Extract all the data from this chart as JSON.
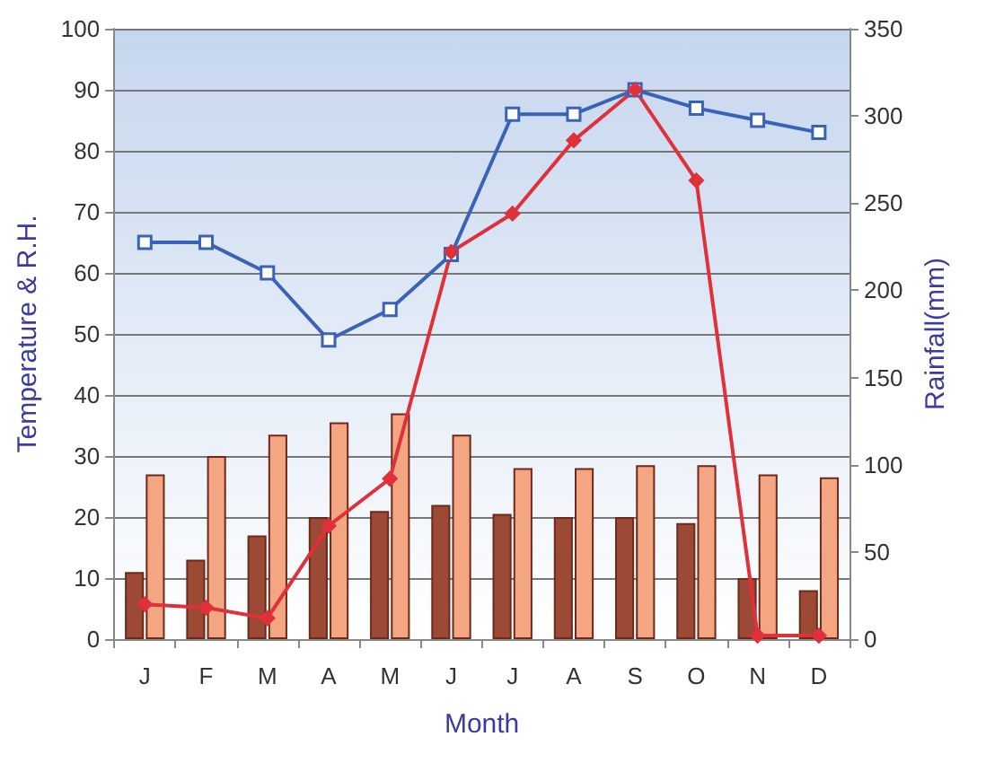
{
  "chart_data": {
    "type": "bar",
    "xlabel": "Month",
    "ylabel": "Temperature & R.H.",
    "y2label": "Rainfall(mm)",
    "categories": [
      "J",
      "F",
      "M",
      "A",
      "M",
      "J",
      "J",
      "A",
      "S",
      "O",
      "N",
      "D"
    ],
    "series": [
      {
        "color": "#9c4a35",
        "values": [
          11,
          13,
          17,
          20,
          21,
          22,
          20.5,
          20,
          20,
          19,
          10,
          8
        ]
      },
      {
        "color": "#f4a582",
        "values": [
          27,
          30,
          33.5,
          35.5,
          37,
          33.5,
          28,
          28,
          28.5,
          28.5,
          27,
          26.5
        ]
      },
      {
        "type": "line",
        "color": "#3a63b8",
        "marker": "square",
        "values": [
          65,
          65,
          60,
          49,
          54,
          63,
          86,
          86,
          90,
          87,
          85,
          83
        ]
      },
      {
        "type": "line",
        "color": "#e0303a",
        "marker": "diamond",
        "axis": "y2",
        "values": [
          20,
          18,
          12,
          65,
          92,
          222,
          244,
          286,
          315,
          263,
          2,
          2
        ]
      }
    ],
    "ylim": [
      0,
      100
    ],
    "yticks": [
      0,
      10,
      20,
      30,
      40,
      50,
      60,
      70,
      80,
      90,
      100
    ],
    "y2lim": [
      0,
      350
    ],
    "y2ticks": [
      0,
      50,
      100,
      150,
      200,
      250,
      300,
      350
    ],
    "grid": "y"
  }
}
